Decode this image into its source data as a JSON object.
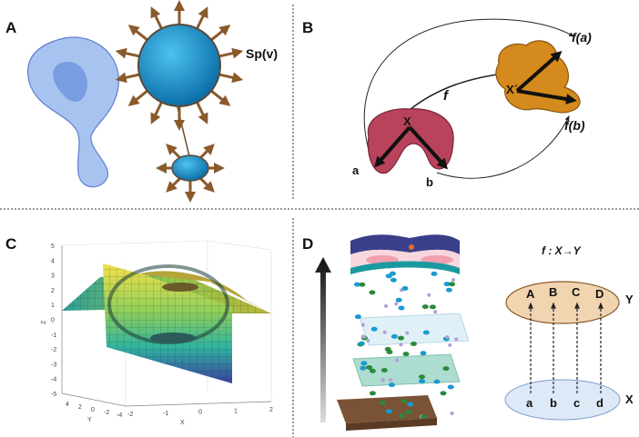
{
  "panels": {
    "a": {
      "label": "A",
      "annotation": "Sp(v)"
    },
    "b": {
      "label": "B",
      "f_a": "f(a)",
      "f_b": "f(b)",
      "f": "f",
      "X": "X",
      "X_prime": "X´",
      "a": "a",
      "b": "b"
    },
    "c": {
      "label": "C",
      "z_ticks": [
        "5",
        "4",
        "3",
        "2",
        "1",
        "0",
        "-1",
        "-2",
        "-3",
        "-4",
        "-5"
      ],
      "y_ticks": [
        "4",
        "2",
        "0",
        "-2",
        "-4"
      ],
      "x_ticks": [
        "-2",
        "-1",
        "0",
        "1",
        "2"
      ],
      "xlabel": "X",
      "ylabel": "Y",
      "zlabel": "Z"
    },
    "d": {
      "label": "D",
      "title": "f : X→Y",
      "upper_points": [
        "A",
        "B",
        "C",
        "D"
      ],
      "lower_points": [
        "a",
        "b",
        "c",
        "d"
      ],
      "upper_set": "Y",
      "lower_set": "X"
    }
  },
  "colors": {
    "cell_blue": "#8fb0e8",
    "sphere_blue": "#1e9ad6",
    "arrow_brown": "#8a5a2b",
    "red_blob": "#b8435a",
    "orange_blob": "#d48a1c",
    "set_y": "#f1d4b0",
    "set_x": "#dde9f7"
  }
}
